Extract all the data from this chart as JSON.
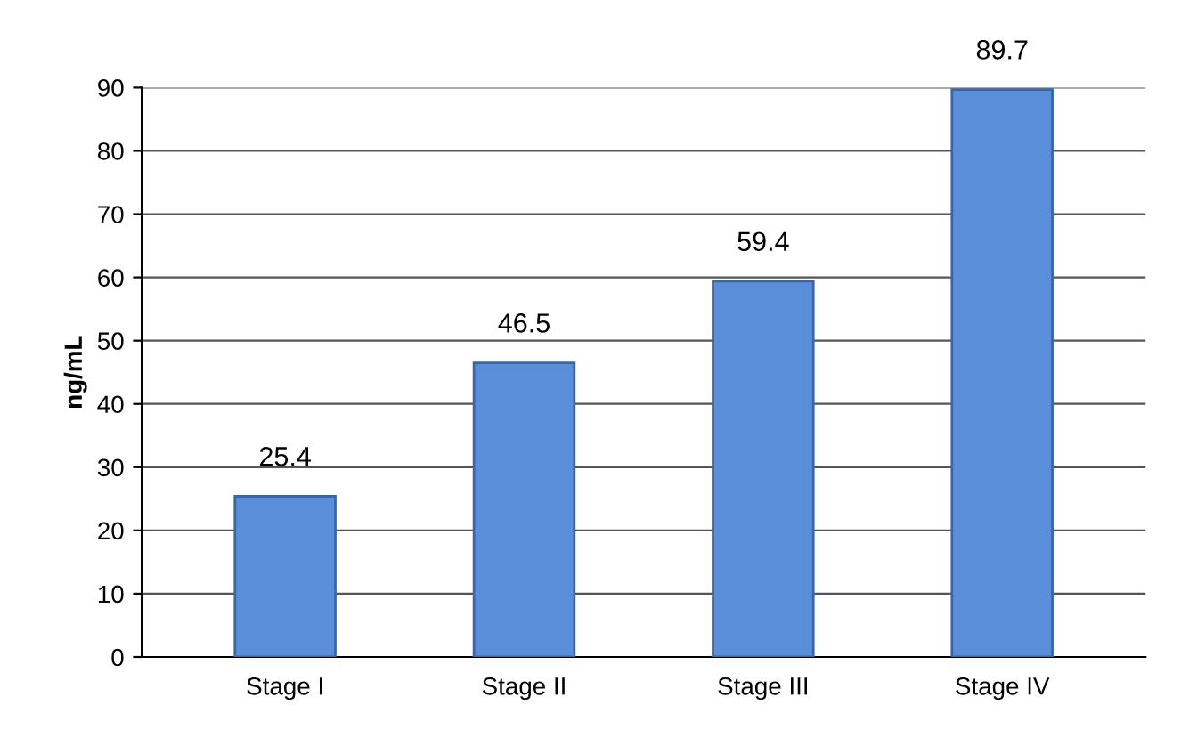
{
  "chart_data": {
    "type": "bar",
    "ylabel": "ng/mL",
    "categories": [
      "Stage I",
      "Stage II",
      "Stage III",
      "Stage IV"
    ],
    "values": [
      25.4,
      46.5,
      59.4,
      89.7
    ],
    "color": "#5b8ed8",
    "ylim": [
      0,
      90
    ],
    "yticks": [
      0,
      10,
      20,
      30,
      40,
      50,
      60,
      70,
      80,
      90
    ],
    "grid": "y",
    "data_labels": true
  }
}
